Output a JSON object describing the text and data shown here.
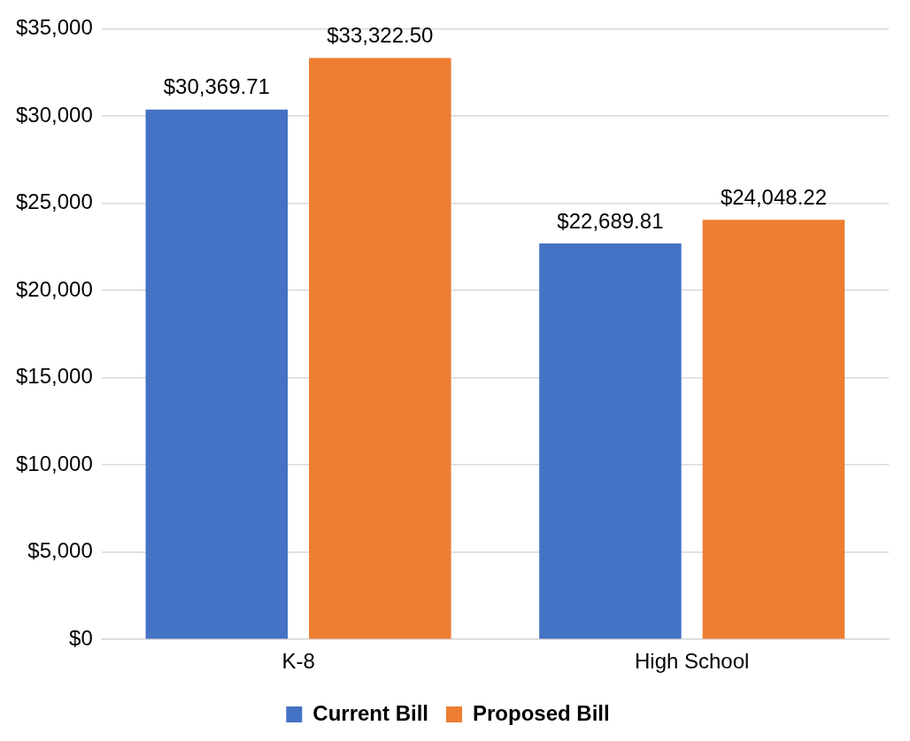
{
  "chart_data": {
    "type": "bar",
    "categories": [
      "K-8",
      "High School"
    ],
    "series": [
      {
        "name": "Current Bill",
        "color": "#4472c4",
        "values": [
          30369.71,
          22689.81
        ],
        "value_labels": [
          "$30,369.71",
          "$22,689.81"
        ]
      },
      {
        "name": "Proposed Bill",
        "color": "#ed7d31",
        "values": [
          33322.5,
          24048.22
        ],
        "value_labels": [
          "$33,322.50",
          "$24,048.22"
        ]
      }
    ],
    "ylim": [
      0,
      35000
    ],
    "yticks": [
      {
        "value": 0,
        "label": "$0"
      },
      {
        "value": 5000,
        "label": "$5,000"
      },
      {
        "value": 10000,
        "label": "$10,000"
      },
      {
        "value": 15000,
        "label": "$15,000"
      },
      {
        "value": 20000,
        "label": "$20,000"
      },
      {
        "value": 25000,
        "label": "$25,000"
      },
      {
        "value": 30000,
        "label": "$30,000"
      },
      {
        "value": 35000,
        "label": "$35,000"
      }
    ],
    "grid": "y",
    "legend": "bottom"
  }
}
